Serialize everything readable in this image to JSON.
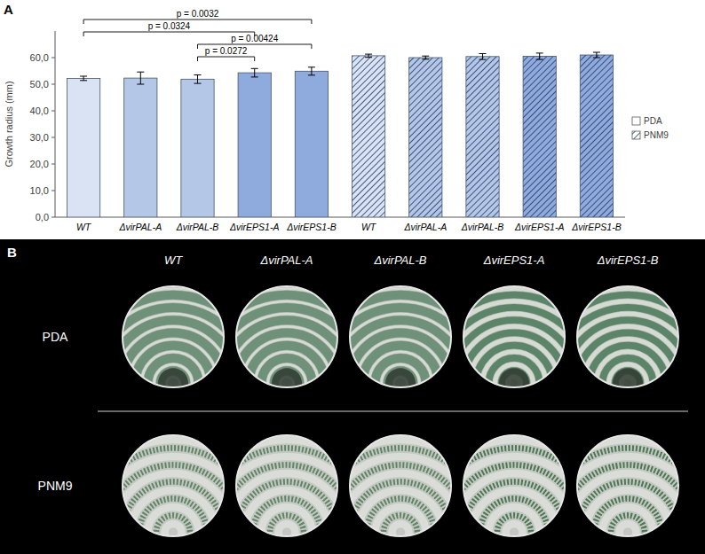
{
  "chart_data": {
    "type": "bar",
    "panel_label": "A",
    "y_label": "Growth radius (mm)",
    "categories": [
      "WT",
      "ΔvirPAL-A",
      "ΔvirPAL-B",
      "ΔvirEPS1-A",
      "ΔvirEPS1-B",
      "WT",
      "ΔvirPAL-A",
      "ΔvirPAL-B",
      "ΔvirEPS1-A",
      "ΔvirEPS1-B"
    ],
    "series": [
      {
        "name": "PDA",
        "color": "#ffffff",
        "colors": [
          "#dae3f3",
          "#b4c7e7",
          "#b4c7e7",
          "#8faadc",
          "#8faadc",
          null,
          null,
          null,
          null,
          null
        ],
        "values": [
          52.2,
          52.3,
          51.9,
          54.3,
          54.9,
          null,
          null,
          null,
          null,
          null
        ],
        "errors": [
          0.8,
          2.3,
          1.6,
          1.6,
          1.5,
          null,
          null,
          null,
          null,
          null
        ]
      },
      {
        "name": "PNM9",
        "color": "#ffffff",
        "colors": [
          null,
          null,
          null,
          null,
          null,
          "#dae3f3",
          "#b4c7e7",
          "#b4c7e7",
          "#8faadc",
          "#8faadc"
        ],
        "values": [
          null,
          null,
          null,
          null,
          null,
          60.7,
          60.0,
          60.4,
          60.5,
          61.0
        ],
        "errors": [
          null,
          null,
          null,
          null,
          null,
          0.6,
          0.6,
          1.1,
          1.2,
          1.0
        ]
      }
    ],
    "ylim": [
      0,
      70
    ],
    "yticks": [
      {
        "value": 0,
        "label": "0,0"
      },
      {
        "value": 10,
        "label": "10,0"
      },
      {
        "value": 20,
        "label": "20,0"
      },
      {
        "value": 30,
        "label": "30,0"
      },
      {
        "value": 40,
        "label": "40,0"
      },
      {
        "value": 50,
        "label": "50,0"
      },
      {
        "value": 60,
        "label": "60,0"
      }
    ],
    "grid": false,
    "legend": "right",
    "annotations": [
      {
        "text": "p = 0.0032",
        "from": 0,
        "to": 4
      },
      {
        "text": "p = 0.00424",
        "from": 2,
        "to": 4
      },
      {
        "text": "p = 0.0324",
        "from": 0,
        "to": 3
      },
      {
        "text": "p = 0.0272",
        "from": 2,
        "to": 3
      }
    ]
  },
  "panel_b": {
    "panel_label": "B",
    "columns": [
      "WT",
      "ΔvirPAL-A",
      "ΔvirPAL-B",
      "ΔvirEPS1-A",
      "ΔvirEPS1-B"
    ],
    "rows": [
      "PDA",
      "PNM9"
    ]
  }
}
